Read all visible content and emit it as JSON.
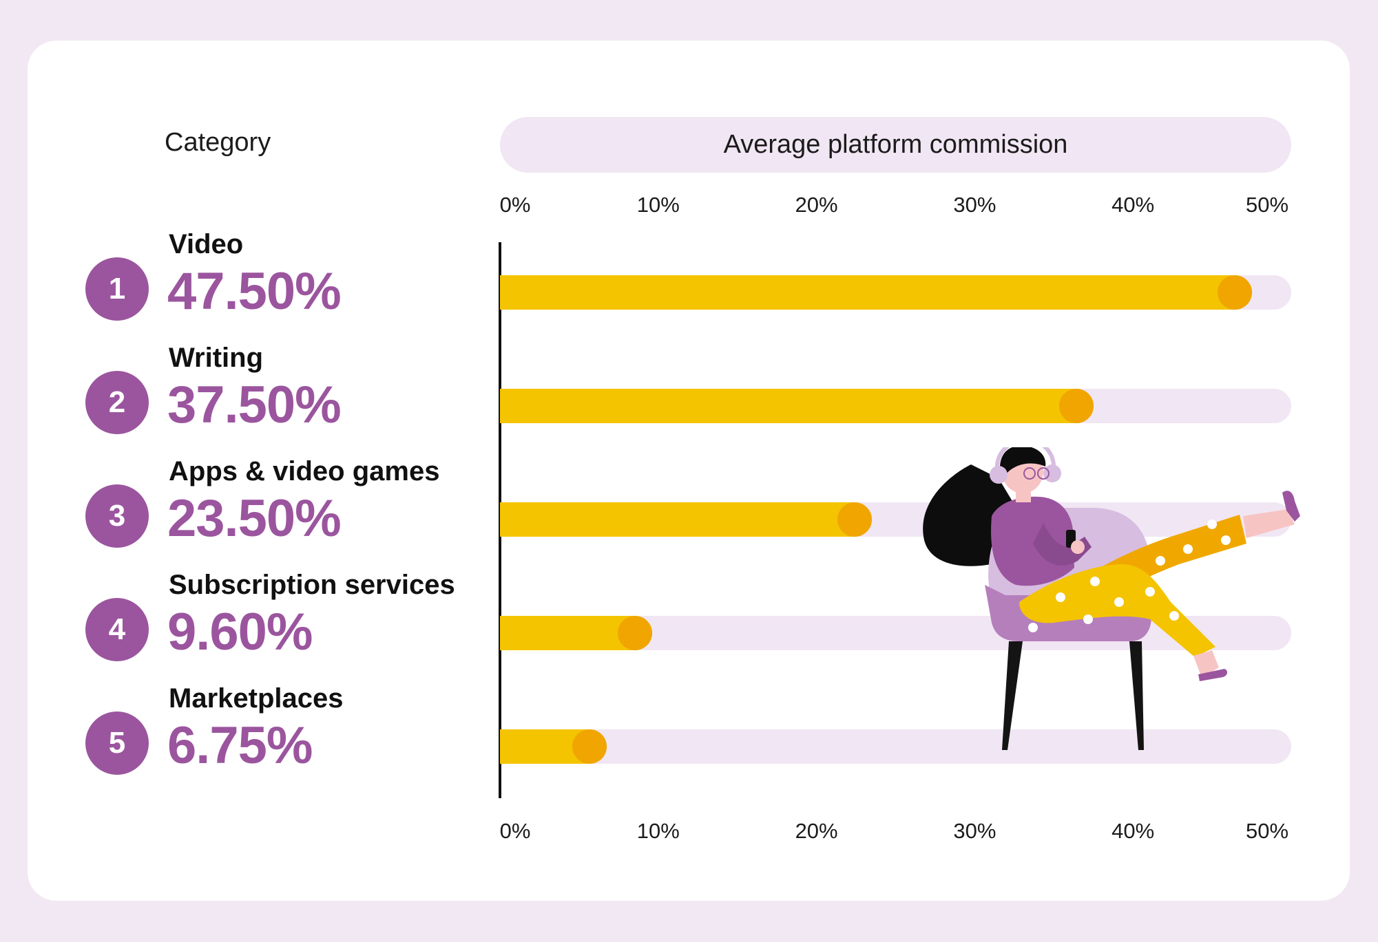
{
  "header": {
    "category_label": "Category",
    "chart_title": "Average platform commission"
  },
  "colors": {
    "page_background": "#f2e8f3",
    "card_background": "#ffffff",
    "accent_purple": "#9b559e",
    "bar_fill": "#f4c400",
    "bar_knob": "#f0a500",
    "bar_track": "#f1e6f3",
    "text_dark": "#111111"
  },
  "axis": {
    "ticks": [
      "0%",
      "10%",
      "20%",
      "30%",
      "40%",
      "50%"
    ],
    "tick_values": [
      0,
      10,
      20,
      30,
      40,
      50
    ],
    "range": [
      0,
      50
    ]
  },
  "chart_data": {
    "type": "bar",
    "orientation": "horizontal",
    "title": "Average platform commission",
    "categories": [
      "Video",
      "Writing",
      "Apps & video games",
      "Subscription services",
      "Marketplaces"
    ],
    "values": [
      47.5,
      37.5,
      23.5,
      9.6,
      6.75
    ],
    "value_labels": [
      "47.50%",
      "37.50%",
      "23.50%",
      "9.60%",
      "6.75%"
    ],
    "ranks": [
      "1",
      "2",
      "3",
      "4",
      "5"
    ],
    "xlim": [
      0,
      50
    ],
    "x_tick_labels": [
      "0%",
      "10%",
      "20%",
      "30%",
      "40%",
      "50%"
    ],
    "grid": false,
    "legend": "none"
  },
  "illustration": {
    "icon": "woman-in-armchair-with-phone-illustration"
  }
}
